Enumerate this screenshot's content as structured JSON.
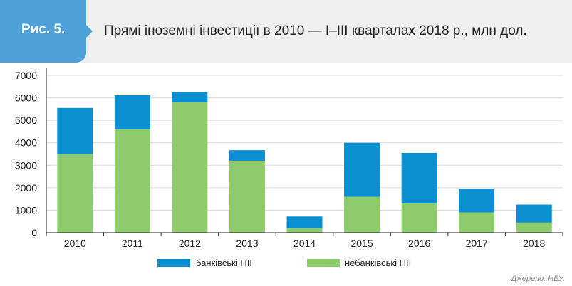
{
  "header": {
    "figure_label": "Рис. 5.",
    "title": "Прямі іноземні інвестиції в 2010 — I–III кварталах 2018 р., млн дол."
  },
  "source": "Джерело: НБУ.",
  "colors": {
    "bank": "#0a8fd0",
    "nonbank": "#8ecb6d",
    "header_bg": "#efefef",
    "badge_bg": "#4ea0d8"
  },
  "chart_data": {
    "type": "bar",
    "stacked": true,
    "categories": [
      "2010",
      "2011",
      "2012",
      "2013",
      "2014",
      "2015",
      "2016",
      "2017",
      "2018"
    ],
    "series": [
      {
        "name": "небанківські ПІІ",
        "values": [
          3500,
          4600,
          5800,
          3200,
          200,
          1600,
          1300,
          900,
          450
        ]
      },
      {
        "name": "банківські ПІІ",
        "values": [
          2050,
          1520,
          450,
          470,
          520,
          2400,
          2250,
          1050,
          800
        ]
      }
    ],
    "yticks": [
      "0",
      "1000",
      "2000",
      "3000",
      "4000",
      "5000",
      "6000",
      "7000"
    ],
    "ylim": [
      0,
      7000
    ],
    "grid": true,
    "legend_position": "bottom"
  }
}
